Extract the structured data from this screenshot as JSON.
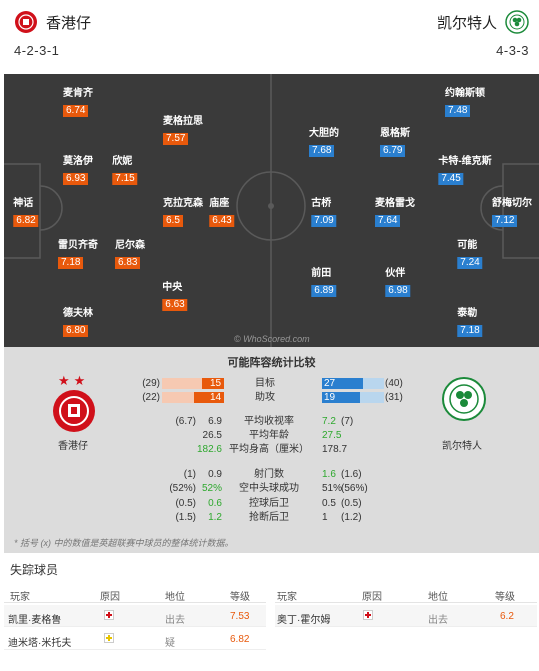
{
  "home": {
    "name": "香港仔",
    "formation": "4-2-3-1",
    "color": "#e8590c",
    "crest": "aberdeen-crest",
    "players": [
      {
        "name": "神话",
        "rating": "6.82"
      },
      {
        "name": "麦肯齐",
        "rating": "6.74"
      },
      {
        "name": "莫洛伊",
        "rating": "6.93"
      },
      {
        "name": "雷贝齐奇",
        "rating": "7.18"
      },
      {
        "name": "德夫林",
        "rating": "6.80"
      },
      {
        "name": "欣妮",
        "rating": "7.15"
      },
      {
        "name": "尼尔森",
        "rating": "6.83"
      },
      {
        "name": "麦格拉思",
        "rating": "7.57"
      },
      {
        "name": "克拉克森",
        "rating": "6.5"
      },
      {
        "name": "中央",
        "rating": "6.63"
      },
      {
        "name": "庙座",
        "rating": "6.43"
      }
    ]
  },
  "away": {
    "name": "凯尔特人",
    "formation": "4-3-3",
    "color": "#2a7fcf",
    "crest": "celtic-crest",
    "players": [
      {
        "name": "舒梅切尔",
        "rating": "7.12"
      },
      {
        "name": "约翰斯顿",
        "rating": "7.48"
      },
      {
        "name": "卡特-维克斯",
        "rating": "7.45"
      },
      {
        "name": "可能",
        "rating": "7.24"
      },
      {
        "name": "泰勒",
        "rating": "7.18"
      },
      {
        "name": "恩格斯",
        "rating": "6.79"
      },
      {
        "name": "麦格雷戈",
        "rating": "7.64"
      },
      {
        "name": "伙伴",
        "rating": "6.98"
      },
      {
        "name": "大胆的",
        "rating": "7.68"
      },
      {
        "name": "古桥",
        "rating": "7.09"
      },
      {
        "name": "前田",
        "rating": "6.89"
      }
    ]
  },
  "watermark": "© WhoScored.com",
  "comparison": {
    "title": "可能阵容统计比较",
    "home_team": "香港仔",
    "away_team": "凯尔特人",
    "bar_rows": [
      {
        "label": "目标",
        "home_rank": "(29)",
        "home_value": "15",
        "home_fraction": 0.36,
        "away_value": "27",
        "away_fraction": 0.66,
        "away_rank": "(40)"
      },
      {
        "label": "助攻",
        "home_rank": "(22)",
        "home_value": "14",
        "home_fraction": 0.48,
        "away_value": "19",
        "away_fraction": 0.62,
        "away_rank": "(31)"
      }
    ],
    "stat_rows": [
      {
        "label": "平均收视率",
        "home_rank": "(6.7)",
        "home_value": "6.9",
        "home_win": false,
        "away_value": "7.2",
        "away_rank": "(7)",
        "away_win": true
      },
      {
        "label": "平均年龄",
        "home_rank": "",
        "home_value": "26.5",
        "home_win": false,
        "away_value": "27.5",
        "away_rank": "",
        "away_win": true
      },
      {
        "label": "平均身高（厘米）",
        "home_rank": "",
        "home_value": "182.6",
        "home_win": true,
        "away_value": "178.7",
        "away_rank": "",
        "away_win": false
      },
      {
        "label": "射门数",
        "home_rank": "(1)",
        "home_value": "0.9",
        "home_win": false,
        "away_value": "1.6",
        "away_rank": "(1.6)",
        "away_win": true
      },
      {
        "label": "空中头球成功",
        "home_rank": "(52%)",
        "home_value": "52%",
        "home_win": true,
        "away_value": "51%",
        "away_rank": "(56%)",
        "away_win": false
      },
      {
        "label": "控球后卫",
        "home_rank": "(0.5)",
        "home_value": "0.6",
        "home_win": true,
        "away_value": "0.5",
        "away_rank": "(0.5)",
        "away_win": false
      },
      {
        "label": "抢断后卫",
        "home_rank": "(1.5)",
        "home_value": "1.2",
        "home_win": true,
        "away_value": "1",
        "away_rank": "(1.2)",
        "away_win": false
      }
    ],
    "footnote": "* 括号 (x) 中的数值是英超联赛中球员的整体统计数据。",
    "win_color": "#2ea82e"
  },
  "missing": {
    "title": "失踪球员",
    "headers": {
      "player": "玩家",
      "reason": "原因",
      "status": "地位",
      "rating": "等级"
    },
    "home": [
      {
        "player": "凯里·麦格鲁",
        "reason_icon": "injury-icon",
        "status": "出去",
        "rating": "7.53"
      },
      {
        "player": "迪米塔·米托夫",
        "reason_icon": "doubt-icon",
        "status": "疑",
        "rating": "6.82"
      }
    ],
    "away": [
      {
        "player": "奥丁·霍尔姆",
        "reason_icon": "injury-icon",
        "status": "出去",
        "rating": "6.2"
      }
    ]
  }
}
